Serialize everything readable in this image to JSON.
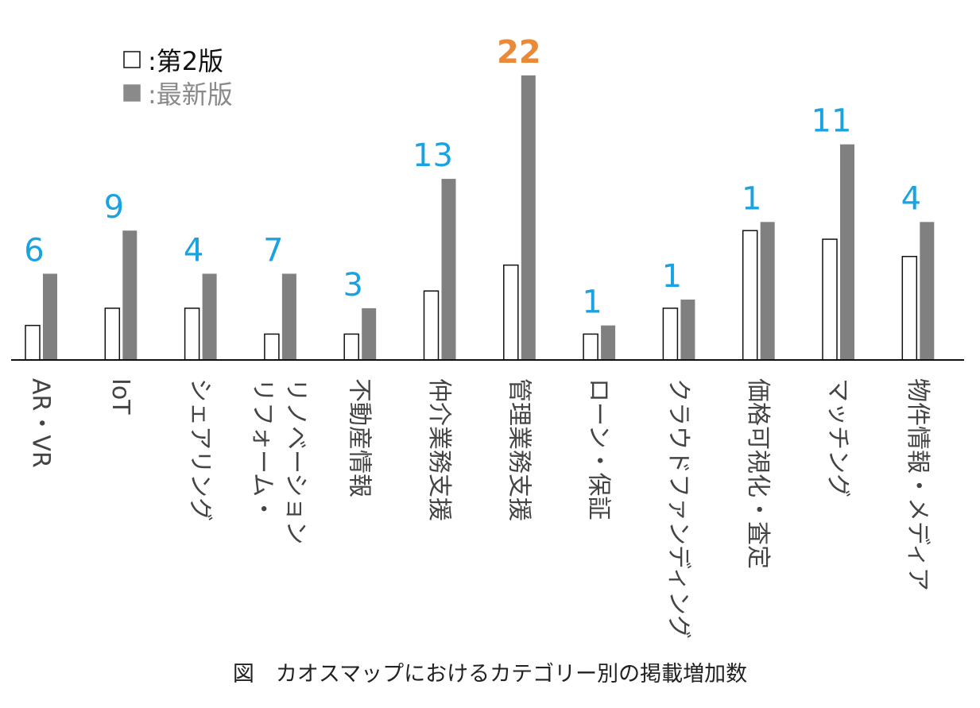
{
  "caption": "図　カオスマップにおけるカテゴリー別の掲載増加数",
  "legend": [
    {
      "marker": "□",
      "text": ":第2版",
      "color": "#111111"
    },
    {
      "marker": "■",
      "text": ":最新版",
      "color": "#8a8a8a"
    }
  ],
  "colors": {
    "old_bar_fill": "#ffffff",
    "old_bar_stroke": "#111111",
    "new_bar_fill": "#808080",
    "increase_label": "#1aa3e0",
    "highlight_label": "#e88a3a",
    "axis": "#111111"
  },
  "chart_data": {
    "type": "bar",
    "title": "",
    "xlabel": "",
    "ylabel": "",
    "ylim": [
      0,
      34
    ],
    "categories": [
      "AR・VR",
      "IoT",
      "シェアリング",
      "リノベーション\nリフォーム・",
      "不動産情報",
      "仲介業務支援",
      "管理業務支援",
      "ローン・保証",
      "クラウドファンディング",
      "価格可視化・査定",
      "マッチング",
      "物件情報・メディア"
    ],
    "series": [
      {
        "name": "第2版",
        "values": [
          4,
          6,
          6,
          3,
          3,
          8,
          11,
          3,
          6,
          15,
          14,
          12
        ]
      },
      {
        "name": "最新版",
        "values": [
          10,
          15,
          10,
          10,
          6,
          21,
          33,
          4,
          7,
          16,
          25,
          16
        ]
      }
    ],
    "increase_labels": [
      "6",
      "9",
      "4",
      "7",
      "3",
      "13",
      "22",
      "1",
      "1",
      "1",
      "11",
      "4"
    ],
    "highlight_index": 6
  }
}
